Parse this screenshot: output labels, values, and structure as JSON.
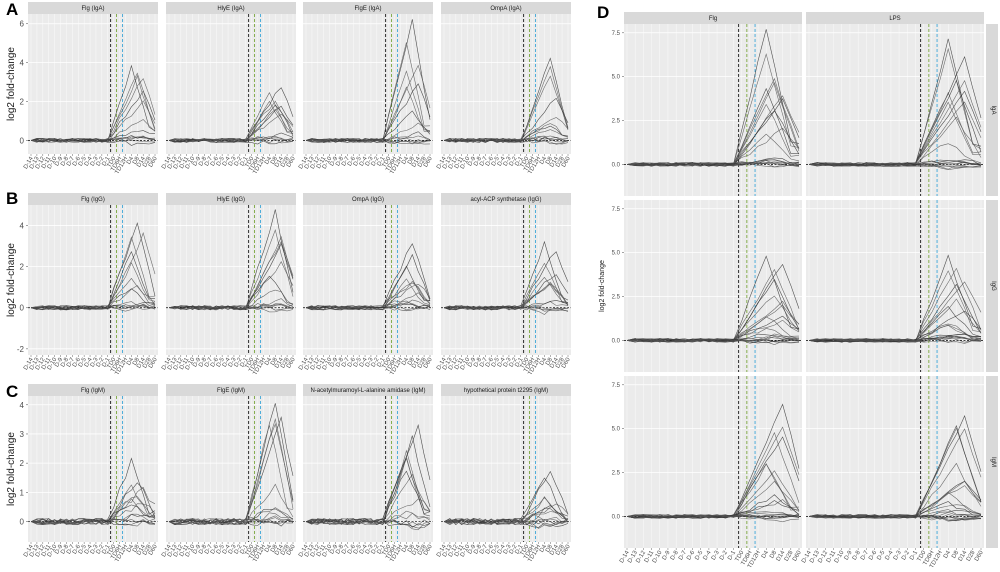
{
  "x_labels": [
    "D-14",
    "D-13",
    "D-12",
    "D-11",
    "D-10",
    "D-9",
    "D-8",
    "D-7",
    "D-6",
    "D-5",
    "D-4",
    "D-3",
    "D-2",
    "D-1",
    "TD0",
    "TD6H",
    "TD12H",
    "D4",
    "D8",
    "D14",
    "D28",
    "D60"
  ],
  "chart_data": [
    {
      "type": "line",
      "panel": "A",
      "ylabel": "log2 fold-change",
      "ylim": [
        -0.7,
        6.5
      ],
      "yticks": [
        0,
        2,
        4,
        6
      ],
      "facets": [
        "Flg (IgA)",
        "HlyE (IgA)",
        "FlgE (IgA)",
        "OmpA (IgA)"
      ],
      "peaks": [
        3.8,
        2.8,
        6.2,
        4.2
      ],
      "n_series": 14
    },
    {
      "type": "line",
      "panel": "B",
      "ylabel": "log2 fold-change",
      "ylim": [
        -2.3,
        5.0
      ],
      "yticks": [
        -2,
        0,
        2,
        4
      ],
      "facets": [
        "Flg (IgG)",
        "HlyE (IgG)",
        "OmpA (IgG)",
        "acyl-ACP synthetase (IgG)"
      ],
      "peaks": [
        4.1,
        4.7,
        3.2,
        3.1
      ],
      "n_series": 14
    },
    {
      "type": "line",
      "panel": "C",
      "ylabel": "log2 fold-change",
      "ylim": [
        -0.7,
        4.3
      ],
      "yticks": [
        0,
        1,
        2,
        3,
        4
      ],
      "facets": [
        "Flg (IgM)",
        "FlgE (IgM)",
        "N-acetylmuramoyl-L-alanine amidase (IgM)",
        "hypothetical protein t2295 (IgM)"
      ],
      "peaks": [
        2.1,
        4.1,
        3.2,
        1.8
      ],
      "n_series": 14
    },
    {
      "type": "line",
      "panel": "D",
      "ylabel": "log2 fold-change",
      "ylim": [
        -1.8,
        8.0
      ],
      "yticks": [
        0.0,
        2.5,
        5.0,
        7.5
      ],
      "ytick_labels": [
        "0.0",
        "2.5",
        "5.0",
        "7.5"
      ],
      "col_facets": [
        "Flg",
        "LPS"
      ],
      "row_facets": [
        "IgA",
        "IgG",
        "IgM"
      ],
      "peaks": [
        [
          7.8,
          7.1
        ],
        [
          4.8,
          4.8
        ],
        [
          6.4,
          5.7
        ]
      ],
      "n_series": 20
    }
  ]
}
